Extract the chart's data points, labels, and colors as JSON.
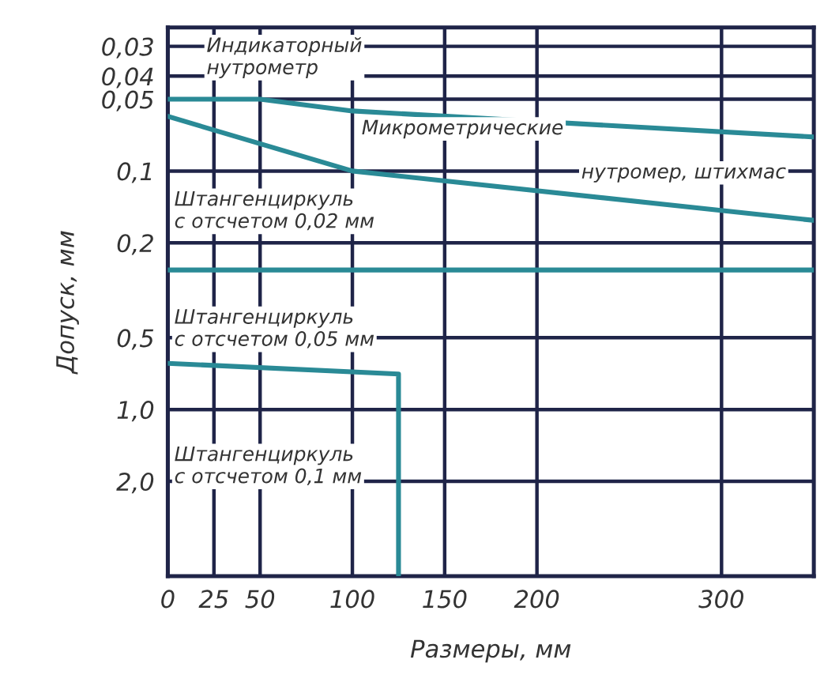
{
  "chart_data": {
    "type": "line",
    "xlabel": "Размеры, мм",
    "ylabel": "Допуск, мм",
    "series": [
      {
        "color": "#2a8a96",
        "x": [
          0,
          50,
          100,
          350
        ],
        "values": [
          0.05,
          0.05,
          0.056,
          0.072
        ]
      },
      {
        "color": "#2a8a96",
        "x": [
          0,
          100,
          350
        ],
        "values": [
          0.059,
          0.1,
          0.161
        ]
      },
      {
        "color": "#2a8a96",
        "x": [
          0,
          350
        ],
        "values": [
          0.26,
          0.26
        ]
      },
      {
        "color": "#2a8a96",
        "x": [
          0,
          125,
          125
        ],
        "values": [
          0.64,
          0.71,
          5
        ]
      }
    ],
    "xlim": [
      0,
      350
    ],
    "xticks": [
      0,
      25,
      50,
      100,
      150,
      200,
      300
    ],
    "log": "y",
    "ylim": [
      5,
      0.025
    ],
    "yticks": [
      {
        "value": 0.03,
        "label": "0,03"
      },
      {
        "value": 0.04,
        "label": "0,04"
      },
      {
        "value": 0.05,
        "label": "0,05"
      },
      {
        "value": 0.1,
        "label": "0,1"
      },
      {
        "value": 0.2,
        "label": "0,2"
      },
      {
        "value": 0.5,
        "label": "0,5"
      },
      {
        "value": 1.0,
        "label": "1,0"
      },
      {
        "value": 2.0,
        "label": "2,0"
      }
    ],
    "grid": true,
    "marker": "none",
    "line_style": "solid",
    "annotations": [
      "Индикаторный\nнутрометр",
      "Микрометрические",
      "нутромер, штихмас",
      "Штангенциркуль\nс отсчетом 0,02 мм",
      "Штангенциркуль\nс отсчетом 0,05 мм",
      "Штангенциркуль\nс отсчетом 0,1 мм"
    ]
  }
}
